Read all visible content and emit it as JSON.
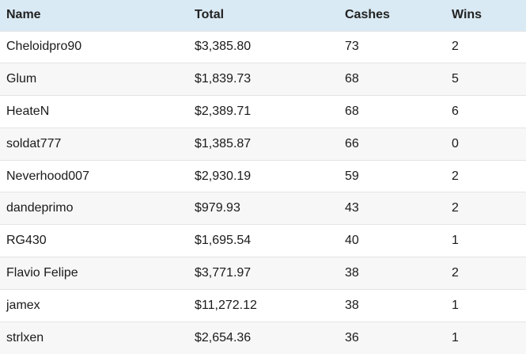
{
  "table": {
    "headers": [
      "Name",
      "Total",
      "Cashes",
      "Wins"
    ],
    "rows": [
      [
        "Cheloidpro90",
        "$3,385.80",
        "73",
        "2"
      ],
      [
        "Glum",
        "$1,839.73",
        "68",
        "5"
      ],
      [
        "HeateN",
        "$2,389.71",
        "68",
        "6"
      ],
      [
        "soldat777",
        "$1,385.87",
        "66",
        "0"
      ],
      [
        "Neverhood007",
        "$2,930.19",
        "59",
        "2"
      ],
      [
        "dandeprimo",
        "$979.93",
        "43",
        "2"
      ],
      [
        "RG430",
        "$1,695.54",
        "40",
        "1"
      ],
      [
        "Flavio Felipe",
        "$3,771.97",
        "38",
        "2"
      ],
      [
        "jamex",
        "$11,272.12",
        "38",
        "1"
      ],
      [
        "strlxen",
        "$2,654.36",
        "36",
        "1"
      ]
    ]
  },
  "colors": {
    "header_bg": "#daeaf4",
    "row_alt_bg": "#f7f7f7",
    "row_bg": "#ffffff",
    "divider": "#e4e4e4"
  }
}
